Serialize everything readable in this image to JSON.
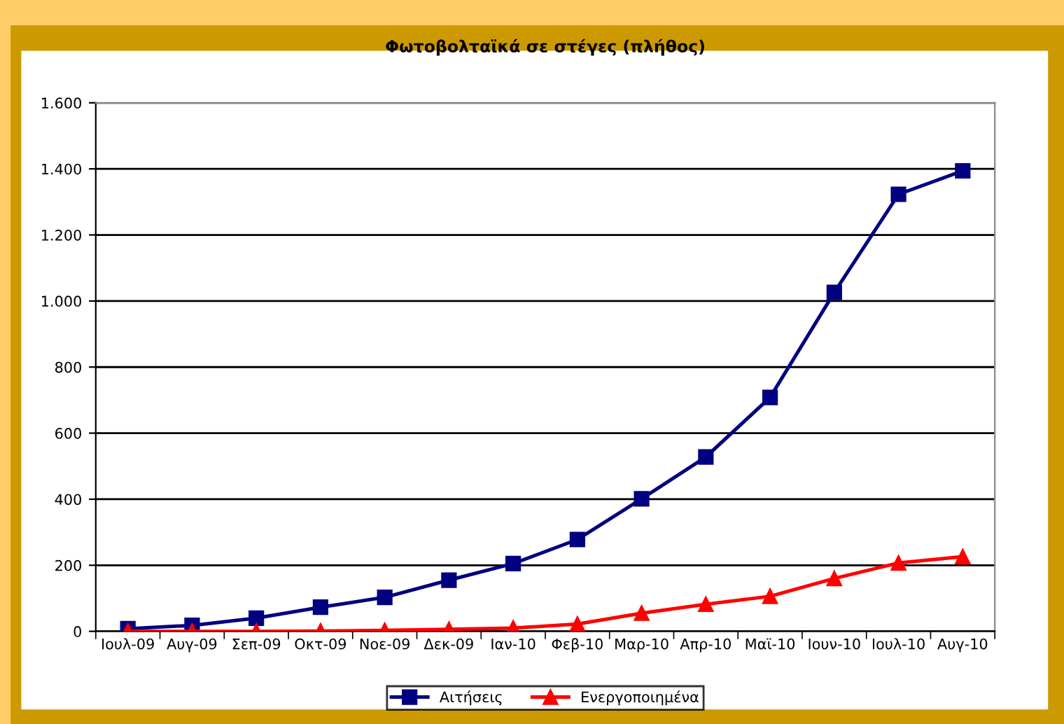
{
  "chart_data": {
    "type": "line",
    "title": "Φωτοβολταϊκά σε στέγες (πλήθος)",
    "categories": [
      "Ιουλ-09",
      "Αυγ-09",
      "Σεπ-09",
      "Οκτ-09",
      "Νοε-09",
      "Δεκ-09",
      "Ιαν-10",
      "Φεβ-10",
      "Μαρ-10",
      "Απρ-10",
      "Μαϊ-10",
      "Ιουν-10",
      "Ιουλ-10",
      "Αυγ-10"
    ],
    "series": [
      {
        "name": "Αιτήσεις",
        "color": "#000080",
        "marker": "square",
        "values": [
          8,
          18,
          40,
          73,
          103,
          155,
          205,
          278,
          401,
          528,
          708,
          1026,
          1323,
          1394
        ]
      },
      {
        "name": "Ενεργοποιημένα",
        "color": "#ff0000",
        "marker": "triangle",
        "values": [
          0,
          0,
          0,
          1,
          3,
          6,
          10,
          22,
          55,
          82,
          106,
          160,
          207,
          226
        ]
      }
    ],
    "ylim": [
      0,
      1600
    ],
    "yticks": [
      {
        "value": 0,
        "label": "0"
      },
      {
        "value": 200,
        "label": "200"
      },
      {
        "value": 400,
        "label": "400"
      },
      {
        "value": 600,
        "label": "600"
      },
      {
        "value": 800,
        "label": "800"
      },
      {
        "value": 1000,
        "label": "1.000"
      },
      {
        "value": 1200,
        "label": "1.200"
      },
      {
        "value": 1400,
        "label": "1.400"
      },
      {
        "value": 1600,
        "label": "1.600"
      }
    ],
    "grid": "y",
    "legend": "bottom",
    "line_style": "solid"
  }
}
